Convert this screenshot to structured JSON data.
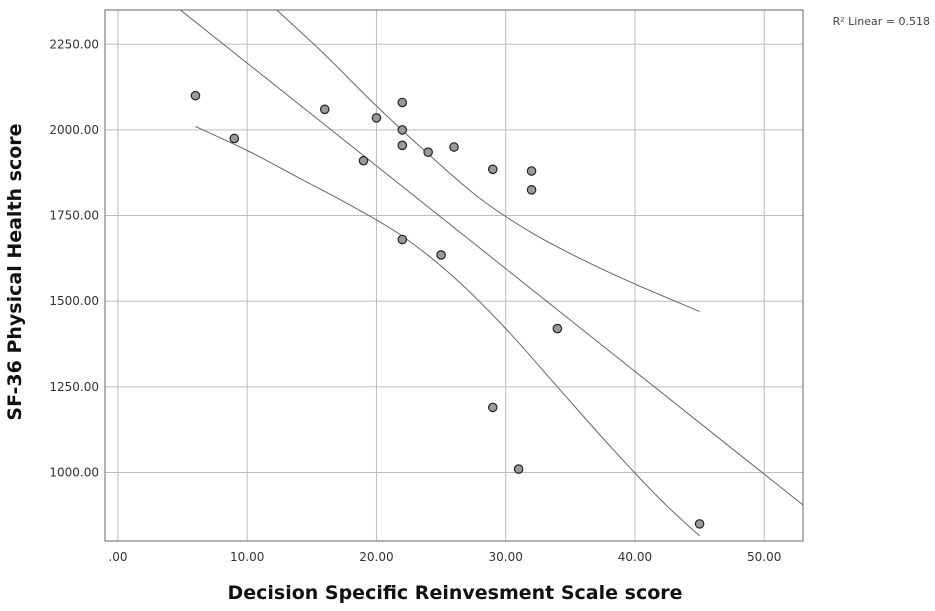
{
  "chart_data": {
    "type": "scatter",
    "title": "",
    "xlabel": "Decision Specific Reinvesment Scale score",
    "ylabel": "SF-36 Physical Health score",
    "annotation": "R² Linear = 0.518",
    "xlim": [
      -1,
      53
    ],
    "ylim": [
      800,
      2350
    ],
    "x_ticks": [
      0,
      10,
      20,
      30,
      40,
      50
    ],
    "x_tick_labels": [
      ".00",
      "10.00",
      "20.00",
      "30.00",
      "40.00",
      "50.00"
    ],
    "y_ticks": [
      1000,
      1250,
      1500,
      1750,
      2000,
      2250
    ],
    "y_tick_labels": [
      "1000.00",
      "1250.00",
      "1500.00",
      "1750.00",
      "2000.00",
      "2250.00"
    ],
    "grid": true,
    "points": [
      {
        "x": 6,
        "y": 2100
      },
      {
        "x": 9,
        "y": 1975
      },
      {
        "x": 16,
        "y": 2060
      },
      {
        "x": 19,
        "y": 1910
      },
      {
        "x": 20,
        "y": 2035
      },
      {
        "x": 22,
        "y": 2080
      },
      {
        "x": 22,
        "y": 2000
      },
      {
        "x": 22,
        "y": 1955
      },
      {
        "x": 22,
        "y": 1680
      },
      {
        "x": 24,
        "y": 1935
      },
      {
        "x": 25,
        "y": 1635
      },
      {
        "x": 26,
        "y": 1950
      },
      {
        "x": 29,
        "y": 1885
      },
      {
        "x": 29,
        "y": 1190
      },
      {
        "x": 31,
        "y": 1010
      },
      {
        "x": 32,
        "y": 1880
      },
      {
        "x": 32,
        "y": 1825
      },
      {
        "x": 34,
        "y": 1420
      },
      {
        "x": 45,
        "y": 850
      }
    ],
    "fit_line": [
      {
        "x": 4.5,
        "y": 2360
      },
      {
        "x": 53,
        "y": 905
      }
    ],
    "upper_band": [
      {
        "x": 12,
        "y": 2360
      },
      {
        "x": 16,
        "y": 2220
      },
      {
        "x": 20,
        "y": 2070
      },
      {
        "x": 24,
        "y": 1930
      },
      {
        "x": 28,
        "y": 1800
      },
      {
        "x": 32,
        "y": 1700
      },
      {
        "x": 36,
        "y": 1620
      },
      {
        "x": 40,
        "y": 1550
      },
      {
        "x": 45,
        "y": 1470
      }
    ],
    "lower_band": [
      {
        "x": 6,
        "y": 2010
      },
      {
        "x": 10,
        "y": 1940
      },
      {
        "x": 14,
        "y": 1860
      },
      {
        "x": 18,
        "y": 1780
      },
      {
        "x": 22,
        "y": 1690
      },
      {
        "x": 26,
        "y": 1570
      },
      {
        "x": 30,
        "y": 1420
      },
      {
        "x": 34,
        "y": 1250
      },
      {
        "x": 38,
        "y": 1080
      },
      {
        "x": 42,
        "y": 920
      },
      {
        "x": 45,
        "y": 815
      }
    ]
  }
}
